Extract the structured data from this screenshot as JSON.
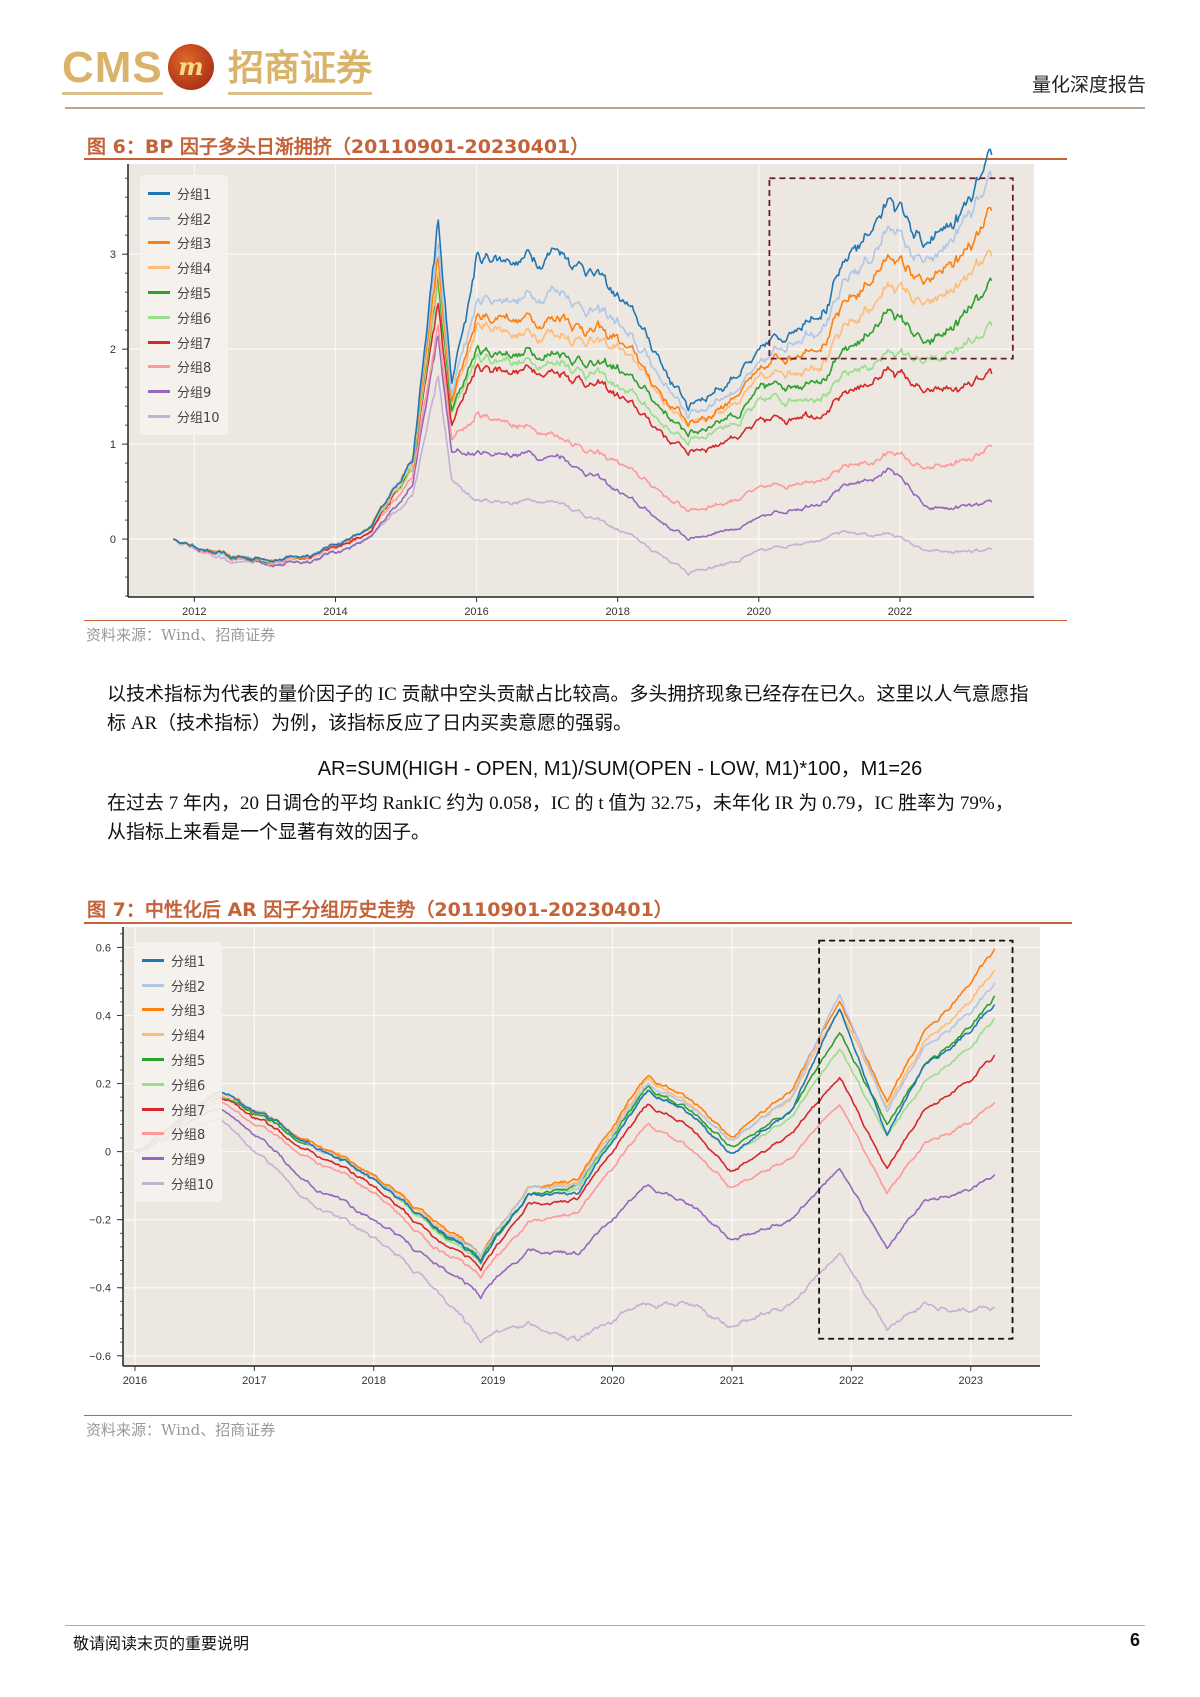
{
  "header": {
    "logo_text": "CMS",
    "logo_badge": "m",
    "logo_cn": "招商证券",
    "report_type": "量化深度报告"
  },
  "figure6": {
    "title": "图 6：BP 因子多头日渐拥挤（20110901-20230401）",
    "source": "资料来源：Wind、招商证券"
  },
  "body": {
    "para1_line1": "以技术指标为代表的量价因子的 IC 贡献中空头贡献占比较高。多头拥挤现象已经存在已久。这里以人气意愿指",
    "para1_line2": "标 AR（技术指标）为例，该指标反应了日内买卖意愿的强弱。",
    "formula": "AR=SUM(HIGH - OPEN, M1)/SUM(OPEN - LOW, M1)*100，M1=26",
    "para2_line1": "在过去 7 年内，20 日调仓的平均 RankIC 约为 0.058，IC 的 t 值为 32.75，未年化 IR 为 0.79，IC 胜率为 79%，",
    "para2_line2": "从指标上来看是一个显著有效的因子。"
  },
  "figure7": {
    "title": "图 7：中性化后 AR 因子分组历史走势（20110901-20230401）",
    "source": "资料来源：Wind、招商证券"
  },
  "footer": {
    "disclaimer": "敬请阅读末页的重要说明",
    "page": "6"
  },
  "chart_data": [
    {
      "type": "line",
      "title": "BP 因子多头日渐拥挤",
      "xlabel": "",
      "ylabel": "",
      "xlim": [
        2011.06,
        2023.9
      ],
      "ylim": [
        -0.61,
        3.95
      ],
      "xticks": [
        "2012",
        "2014",
        "2016",
        "2018",
        "2020",
        "2022"
      ],
      "yticks": [
        "0",
        "1",
        "2",
        "3"
      ],
      "grid": true,
      "legend_position": "top-left",
      "highlight_box": {
        "x": [
          2020.15,
          2023.6
        ],
        "y": [
          1.9,
          3.8
        ],
        "color": "#6b1a2a"
      },
      "x": [
        2011.7,
        2012.5,
        2013.5,
        2014.5,
        2015.1,
        2015.45,
        2015.65,
        2016.0,
        2017.2,
        2018.0,
        2019.0,
        2020.0,
        2021.0,
        2021.9,
        2022.4,
        2023.3
      ],
      "series": [
        {
          "name": "分组1",
          "color": "#1f77b4",
          "values": [
            0,
            -0.2,
            -0.2,
            0.1,
            0.9,
            3.3,
            1.6,
            2.9,
            3.1,
            2.6,
            1.4,
            1.9,
            2.6,
            3.6,
            3.0,
            3.8
          ]
        },
        {
          "name": "分组2",
          "color": "#aec7e8",
          "values": [
            0,
            -0.2,
            -0.2,
            0.1,
            0.9,
            3.1,
            1.5,
            2.5,
            2.6,
            2.3,
            1.3,
            1.8,
            2.4,
            3.3,
            2.8,
            3.65
          ]
        },
        {
          "name": "分组3",
          "color": "#ff7f0e",
          "values": [
            0,
            -0.2,
            -0.2,
            0.1,
            0.9,
            2.9,
            1.4,
            2.3,
            2.4,
            2.1,
            1.2,
            1.7,
            2.2,
            3.0,
            2.6,
            3.3
          ]
        },
        {
          "name": "分组4",
          "color": "#ffbb78",
          "values": [
            0,
            -0.2,
            -0.2,
            0.1,
            0.85,
            2.8,
            1.4,
            2.2,
            2.2,
            2.0,
            1.2,
            1.6,
            2.0,
            2.7,
            2.4,
            2.85
          ]
        },
        {
          "name": "分组5",
          "color": "#2ca02c",
          "values": [
            0,
            -0.2,
            -0.2,
            0.1,
            0.85,
            2.7,
            1.3,
            2.0,
            2.0,
            1.8,
            1.1,
            1.5,
            1.8,
            2.4,
            2.0,
            2.55
          ]
        },
        {
          "name": "分组6",
          "color": "#98df8a",
          "values": [
            0,
            -0.2,
            -0.2,
            0.1,
            0.8,
            2.6,
            1.3,
            1.9,
            1.9,
            1.6,
            1.0,
            1.4,
            1.6,
            2.0,
            1.8,
            2.1
          ]
        },
        {
          "name": "分组7",
          "color": "#d62728",
          "values": [
            0,
            -0.2,
            -0.2,
            0.05,
            0.8,
            2.5,
            1.2,
            1.8,
            1.8,
            1.5,
            0.9,
            1.2,
            1.4,
            1.8,
            1.5,
            1.65
          ]
        },
        {
          "name": "分组8",
          "color": "#ff9896",
          "values": [
            0,
            -0.22,
            -0.22,
            0.05,
            0.7,
            2.2,
            1.0,
            1.3,
            1.1,
            0.8,
            0.3,
            0.5,
            0.7,
            0.9,
            0.7,
            0.9
          ]
        },
        {
          "name": "分组9",
          "color": "#9467bd",
          "values": [
            0,
            -0.22,
            -0.25,
            0.0,
            0.6,
            2.1,
            0.9,
            0.9,
            0.9,
            0.5,
            0.0,
            0.2,
            0.45,
            0.75,
            0.3,
            0.35
          ]
        },
        {
          "name": "分组10",
          "color": "#c5b0d5",
          "values": [
            0,
            -0.25,
            -0.25,
            0.0,
            0.5,
            1.7,
            0.6,
            0.4,
            0.4,
            0.1,
            -0.35,
            -0.15,
            0.05,
            0.05,
            -0.15,
            -0.15
          ]
        }
      ]
    },
    {
      "type": "line",
      "title": "中性化后 AR 因子分组历史走势",
      "xlabel": "",
      "ylabel": "",
      "xlim": [
        2015.9,
        2023.58
      ],
      "ylim": [
        -0.63,
        0.66
      ],
      "xticks": [
        "2016",
        "2017",
        "2018",
        "2019",
        "2020",
        "2021",
        "2022",
        "2023"
      ],
      "yticks": [
        "0.6",
        "0.4",
        "0.2",
        "0",
        "-0.2",
        "-0.4",
        "-0.6"
      ],
      "grid": true,
      "legend_position": "top-left",
      "highlight_box": {
        "x": [
          2021.73,
          2023.35
        ],
        "y": [
          -0.55,
          0.62
        ],
        "color": "#111111"
      },
      "x": [
        2016.0,
        2016.7,
        2017.0,
        2017.5,
        2018.0,
        2018.5,
        2018.9,
        2019.3,
        2019.7,
        2020.3,
        2020.6,
        2021.0,
        2021.5,
        2021.9,
        2022.3,
        2022.6,
        2023.2
      ],
      "series": [
        {
          "name": "分组1",
          "color": "#1f77b4",
          "values": [
            0,
            0.18,
            0.12,
            0.02,
            -0.08,
            -0.22,
            -0.32,
            -0.12,
            -0.12,
            0.18,
            0.12,
            0.0,
            0.12,
            0.42,
            0.05,
            0.25,
            0.42
          ]
        },
        {
          "name": "分组2",
          "color": "#aec7e8",
          "values": [
            0,
            0.18,
            0.12,
            0.02,
            -0.08,
            -0.22,
            -0.3,
            -0.1,
            -0.1,
            0.2,
            0.14,
            0.04,
            0.16,
            0.46,
            0.12,
            0.3,
            0.48
          ]
        },
        {
          "name": "分组3",
          "color": "#ff7f0e",
          "values": [
            0,
            0.18,
            0.12,
            0.03,
            -0.07,
            -0.2,
            -0.3,
            -0.1,
            -0.08,
            0.22,
            0.16,
            0.05,
            0.18,
            0.44,
            0.15,
            0.35,
            0.58
          ]
        },
        {
          "name": "分组4",
          "color": "#ffbb78",
          "values": [
            0,
            0.17,
            0.12,
            0.03,
            -0.07,
            -0.21,
            -0.3,
            -0.1,
            -0.09,
            0.21,
            0.15,
            0.04,
            0.16,
            0.42,
            0.13,
            0.32,
            0.52
          ]
        },
        {
          "name": "分组5",
          "color": "#2ca02c",
          "values": [
            0,
            0.17,
            0.11,
            0.02,
            -0.08,
            -0.22,
            -0.31,
            -0.12,
            -0.1,
            0.19,
            0.13,
            0.02,
            0.12,
            0.35,
            0.08,
            0.25,
            0.44
          ]
        },
        {
          "name": "分组6",
          "color": "#98df8a",
          "values": [
            0,
            0.17,
            0.11,
            0.02,
            -0.08,
            -0.23,
            -0.32,
            -0.12,
            -0.11,
            0.18,
            0.12,
            0.0,
            0.1,
            0.3,
            0.05,
            0.2,
            0.38
          ]
        },
        {
          "name": "分组7",
          "color": "#d62728",
          "values": [
            0,
            0.16,
            0.1,
            0.0,
            -0.1,
            -0.25,
            -0.34,
            -0.15,
            -0.14,
            0.14,
            0.08,
            -0.05,
            0.05,
            0.22,
            -0.05,
            0.12,
            0.27
          ]
        },
        {
          "name": "分组8",
          "color": "#ff9896",
          "values": [
            0,
            0.15,
            0.08,
            -0.02,
            -0.12,
            -0.28,
            -0.36,
            -0.2,
            -0.18,
            0.08,
            0.02,
            -0.1,
            -0.02,
            0.14,
            -0.12,
            0.02,
            0.13
          ]
        },
        {
          "name": "分组9",
          "color": "#9467bd",
          "values": [
            0,
            0.13,
            0.05,
            -0.1,
            -0.2,
            -0.33,
            -0.42,
            -0.28,
            -0.3,
            -0.1,
            -0.15,
            -0.25,
            -0.2,
            -0.05,
            -0.28,
            -0.15,
            -0.08
          ]
        },
        {
          "name": "分组10",
          "color": "#c5b0d5",
          "values": [
            0,
            0.1,
            0.0,
            -0.15,
            -0.25,
            -0.4,
            -0.55,
            -0.5,
            -0.55,
            -0.45,
            -0.45,
            -0.5,
            -0.45,
            -0.3,
            -0.52,
            -0.45,
            -0.47
          ]
        }
      ]
    }
  ]
}
